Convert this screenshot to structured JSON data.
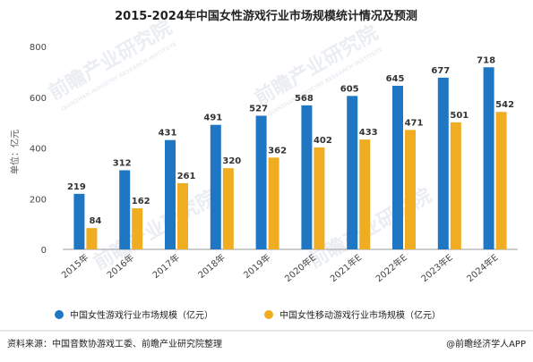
{
  "chart_data": {
    "type": "bar",
    "title": "2015-2024年中国女性游戏行业市场规模统计情况及预测",
    "ylabel": "单位：亿元",
    "categories": [
      "2015年",
      "2016年",
      "2017年",
      "2018年",
      "2019年",
      "2020年E",
      "2021年E",
      "2022年E",
      "2023年E",
      "2024年E"
    ],
    "series": [
      {
        "name": "中国女性游戏行业市场规模（亿元）",
        "color": "#1f77c4",
        "values": [
          219,
          312,
          431,
          491,
          527,
          568,
          605,
          645,
          677,
          718
        ]
      },
      {
        "name": "中国女性移动游戏行业市场规模（亿元）",
        "color": "#f0ad22",
        "values": [
          84,
          162,
          261,
          320,
          362,
          402,
          433,
          471,
          501,
          542
        ]
      }
    ],
    "ylim": [
      0,
      800
    ],
    "yticks": [
      0,
      200,
      400,
      600,
      800
    ],
    "grid": false,
    "legend": "bottom"
  },
  "footer": {
    "source": "资料来源：中国音数协游戏工委、前瞻产业研究院整理",
    "brand": "@前瞻经济学人APP"
  },
  "watermark": {
    "text": "前瞻产业研究院",
    "subtext": "QIANZHAN INDUSTRY RESEARCH INSTITUTE"
  }
}
